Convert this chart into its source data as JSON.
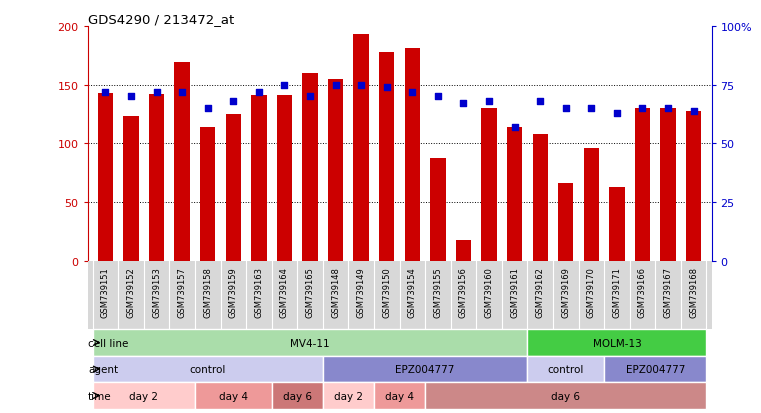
{
  "title": "GDS4290 / 213472_at",
  "samples": [
    "GSM739151",
    "GSM739152",
    "GSM739153",
    "GSM739157",
    "GSM739158",
    "GSM739159",
    "GSM739163",
    "GSM739164",
    "GSM739165",
    "GSM739148",
    "GSM739149",
    "GSM739150",
    "GSM739154",
    "GSM739155",
    "GSM739156",
    "GSM739160",
    "GSM739161",
    "GSM739162",
    "GSM739169",
    "GSM739170",
    "GSM739171",
    "GSM739166",
    "GSM739167",
    "GSM739168"
  ],
  "counts": [
    143,
    123,
    142,
    169,
    114,
    125,
    141,
    141,
    160,
    155,
    193,
    178,
    181,
    88,
    18,
    130,
    114,
    108,
    66,
    96,
    63,
    130,
    130,
    128
  ],
  "percentile_ranks": [
    72,
    70,
    72,
    72,
    65,
    68,
    72,
    75,
    70,
    75,
    75,
    74,
    72,
    70,
    67,
    68,
    57,
    68,
    65,
    65,
    63,
    65,
    65,
    64
  ],
  "bar_color": "#cc0000",
  "dot_color": "#0000cc",
  "ylim_left": [
    0,
    200
  ],
  "ylim_right": [
    0,
    100
  ],
  "yticks_left": [
    0,
    50,
    100,
    150,
    200
  ],
  "yticks_right": [
    0,
    25,
    50,
    75,
    100
  ],
  "ytick_labels_right": [
    "0",
    "25",
    "50",
    "75",
    "100%"
  ],
  "grid_ticks": [
    50,
    100,
    150
  ],
  "cell_line_row": {
    "label": "cell line",
    "segments": [
      {
        "text": "MV4-11",
        "start": 0,
        "end": 17,
        "color": "#aaddaa"
      },
      {
        "text": "MOLM-13",
        "start": 17,
        "end": 24,
        "color": "#44cc44"
      }
    ]
  },
  "agent_row": {
    "label": "agent",
    "segments": [
      {
        "text": "control",
        "start": 0,
        "end": 9,
        "color": "#ccccee"
      },
      {
        "text": "EPZ004777",
        "start": 9,
        "end": 17,
        "color": "#8888cc"
      },
      {
        "text": "control",
        "start": 17,
        "end": 20,
        "color": "#ccccee"
      },
      {
        "text": "EPZ004777",
        "start": 20,
        "end": 24,
        "color": "#8888cc"
      }
    ]
  },
  "time_row": {
    "label": "time",
    "segments": [
      {
        "text": "day 2",
        "start": 0,
        "end": 4,
        "color": "#ffcccc"
      },
      {
        "text": "day 4",
        "start": 4,
        "end": 7,
        "color": "#ee9999"
      },
      {
        "text": "day 6",
        "start": 7,
        "end": 9,
        "color": "#cc7777"
      },
      {
        "text": "day 2",
        "start": 9,
        "end": 11,
        "color": "#ffcccc"
      },
      {
        "text": "day 4",
        "start": 11,
        "end": 13,
        "color": "#ee9999"
      },
      {
        "text": "day 6",
        "start": 13,
        "end": 24,
        "color": "#cc8888"
      }
    ]
  },
  "xticklabel_bg": "#d8d8d8",
  "bg_color": "#ffffff",
  "plot_bg": "#ffffff"
}
